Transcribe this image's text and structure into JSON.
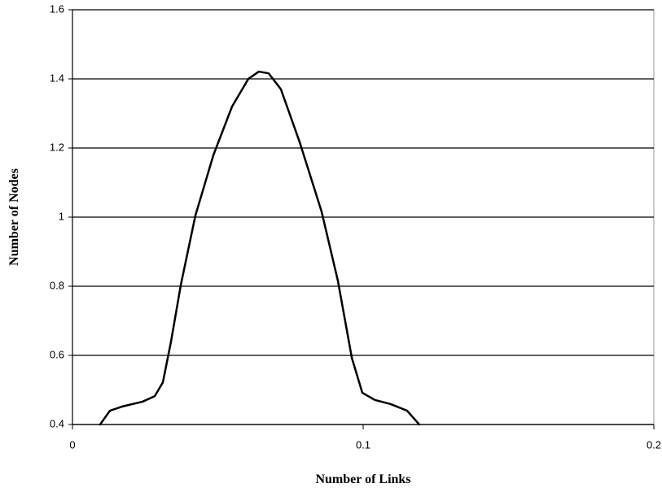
{
  "chart_data": {
    "type": "line",
    "xlabel": "Number of Links",
    "ylabel": "Number of Nodes",
    "x": [
      0.0095,
      0.0129,
      0.0171,
      0.0241,
      0.0283,
      0.0311,
      0.0339,
      0.0373,
      0.0423,
      0.0485,
      0.0549,
      0.0605,
      0.0641,
      0.0675,
      0.0717,
      0.0782,
      0.0857,
      0.0913,
      0.0961,
      0.0997,
      0.104,
      0.1095,
      0.1151,
      0.1193
    ],
    "series": [
      {
        "color": "#000000",
        "values": [
          0.4,
          0.44,
          0.452,
          0.466,
          0.482,
          0.522,
          0.64,
          0.805,
          1.005,
          1.18,
          1.32,
          1.4,
          1.421,
          1.416,
          1.37,
          1.216,
          1.016,
          0.816,
          0.593,
          0.492,
          0.471,
          0.459,
          0.44,
          0.4
        ]
      }
    ],
    "xlim": [
      0,
      0.2
    ],
    "xticks": [
      0,
      0.1,
      0.2
    ],
    "ylim": [
      0.4,
      1.6
    ],
    "yticks": [
      0.4,
      0.6,
      0.8,
      1,
      1.2,
      1.4,
      1.6
    ],
    "grid": true
  }
}
